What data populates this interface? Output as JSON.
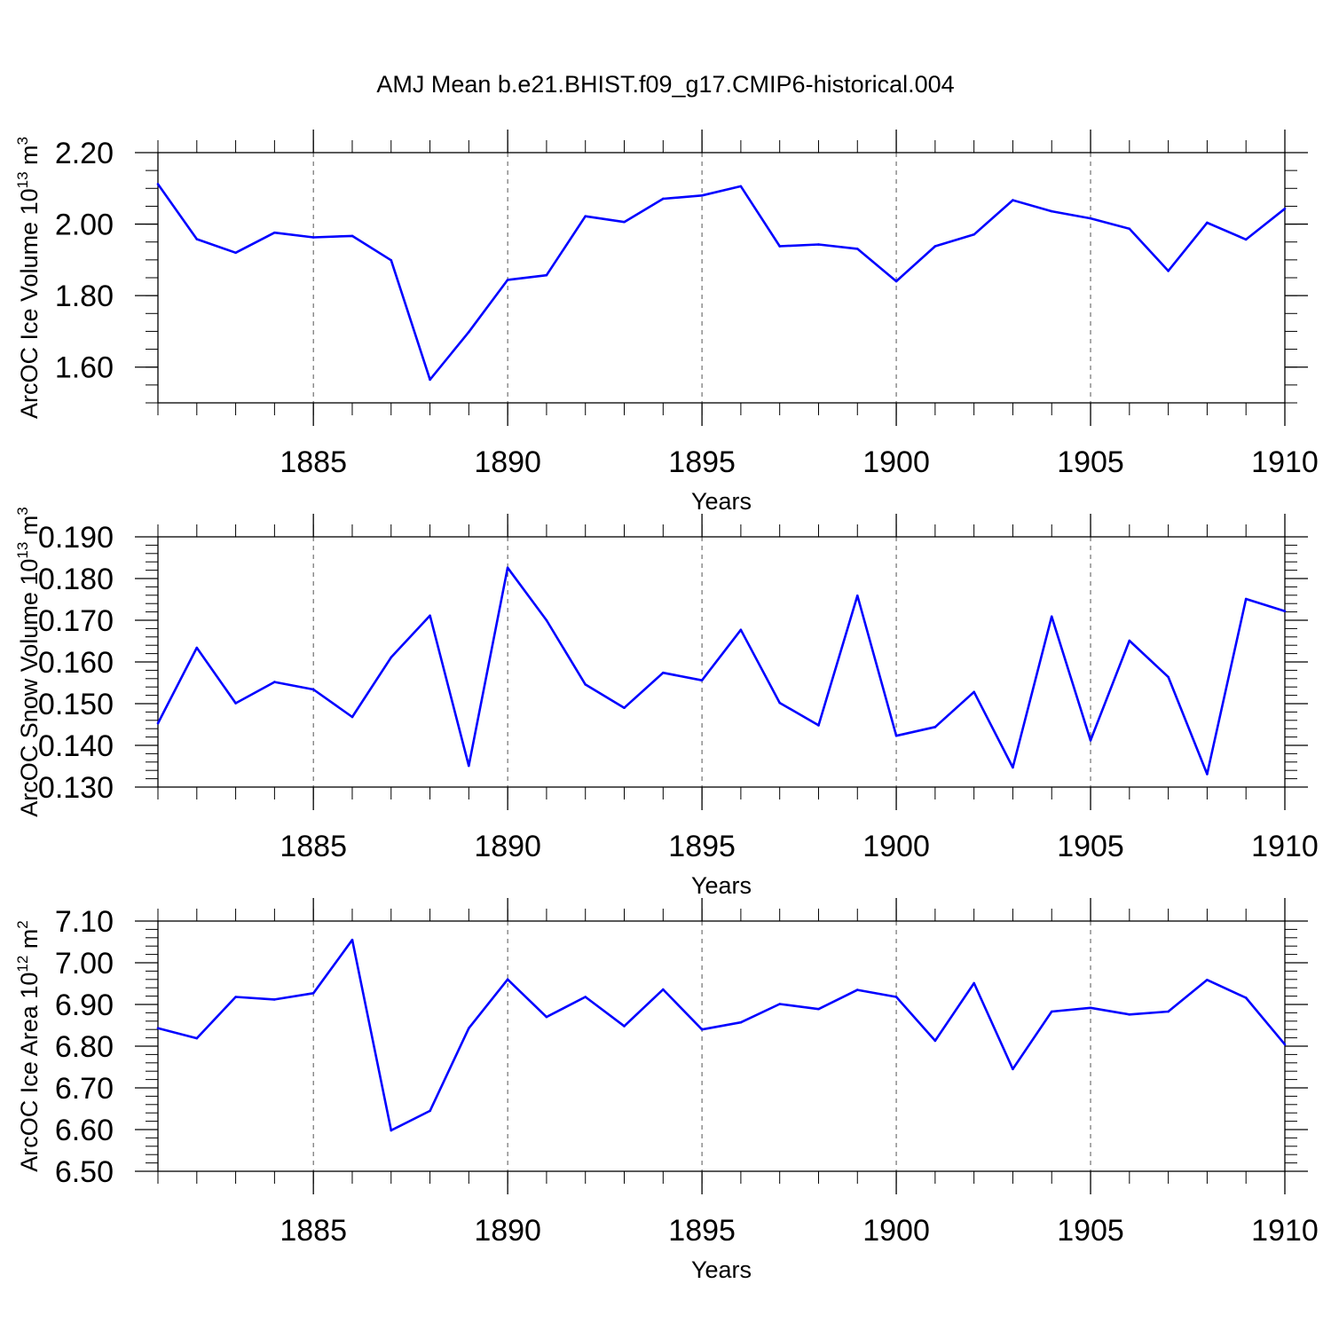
{
  "title": "AMJ Mean b.e21.BHIST.f09_g17.CMIP6-historical.004",
  "line_color": "#0000ff",
  "chart_data": [
    {
      "type": "line",
      "xlabel": "Years",
      "ylabel": {
        "text": "ArcOC Ice Volume 10",
        "exponent": "13",
        "unit": "m",
        "unit_exponent": "3"
      },
      "xlim": [
        1881,
        1910
      ],
      "ylim": [
        1.5,
        2.2
      ],
      "x_ticks": [
        1885,
        1890,
        1895,
        1900,
        1905,
        1910
      ],
      "x_minor_step": 1,
      "y_ticks": [
        1.6,
        1.8,
        2.0,
        2.2
      ],
      "y_tick_labels": [
        "1.60",
        "1.80",
        "2.00",
        "2.20"
      ],
      "y_minor_step": 0.05,
      "grid": "vertical-dashed-at-major-x",
      "x": [
        1881,
        1882,
        1883,
        1884,
        1885,
        1886,
        1887,
        1888,
        1889,
        1890,
        1891,
        1892,
        1893,
        1894,
        1895,
        1896,
        1897,
        1898,
        1899,
        1900,
        1901,
        1902,
        1903,
        1904,
        1905,
        1906,
        1907,
        1908,
        1909,
        1910
      ],
      "values": [
        2.112,
        1.958,
        1.92,
        1.976,
        1.963,
        1.967,
        1.899,
        1.565,
        1.698,
        1.844,
        1.857,
        2.022,
        2.006,
        2.071,
        2.08,
        2.106,
        1.938,
        1.943,
        1.931,
        1.84,
        1.938,
        1.971,
        2.067,
        2.036,
        2.016,
        1.987,
        1.869,
        2.004,
        1.957,
        2.043
      ]
    },
    {
      "type": "line",
      "xlabel": "Years",
      "ylabel": {
        "text": "ArcOC Snow Volume 10",
        "exponent": "13",
        "unit": "m",
        "unit_exponent": "3"
      },
      "xlim": [
        1881,
        1910
      ],
      "ylim": [
        0.13,
        0.19
      ],
      "x_ticks": [
        1885,
        1890,
        1895,
        1900,
        1905,
        1910
      ],
      "x_minor_step": 1,
      "y_ticks": [
        0.13,
        0.14,
        0.15,
        0.16,
        0.17,
        0.18,
        0.19
      ],
      "y_tick_labels": [
        "0.130",
        "0.140",
        "0.150",
        "0.160",
        "0.170",
        "0.180",
        "0.190"
      ],
      "y_minor_step": 0.002,
      "grid": "vertical-dashed-at-major-x",
      "x": [
        1881,
        1882,
        1883,
        1884,
        1885,
        1886,
        1887,
        1888,
        1889,
        1890,
        1891,
        1892,
        1893,
        1894,
        1895,
        1896,
        1897,
        1898,
        1899,
        1900,
        1901,
        1902,
        1903,
        1904,
        1905,
        1906,
        1907,
        1908,
        1909,
        1910
      ],
      "values": [
        0.1453,
        0.1634,
        0.1501,
        0.1552,
        0.1534,
        0.1468,
        0.1611,
        0.1711,
        0.1351,
        0.1826,
        0.17,
        0.1546,
        0.149,
        0.1574,
        0.1556,
        0.1677,
        0.1502,
        0.1448,
        0.1759,
        0.1423,
        0.1444,
        0.1528,
        0.1347,
        0.1709,
        0.1412,
        0.1651,
        0.1564,
        0.1331,
        0.1751,
        0.1722
      ]
    },
    {
      "type": "line",
      "xlabel": "Years",
      "ylabel": {
        "text": "ArcOC Ice Area 10",
        "exponent": "12",
        "unit": "m",
        "unit_exponent": "2"
      },
      "xlim": [
        1881,
        1910
      ],
      "ylim": [
        6.5,
        7.1
      ],
      "x_ticks": [
        1885,
        1890,
        1895,
        1900,
        1905,
        1910
      ],
      "x_minor_step": 1,
      "y_ticks": [
        6.5,
        6.6,
        6.7,
        6.8,
        6.9,
        7.0,
        7.1
      ],
      "y_tick_labels": [
        "6.50",
        "6.60",
        "6.70",
        "6.80",
        "6.90",
        "7.00",
        "7.10"
      ],
      "y_minor_step": 0.02,
      "grid": "vertical-dashed-at-major-x",
      "x": [
        1881,
        1882,
        1883,
        1884,
        1885,
        1886,
        1887,
        1888,
        1889,
        1890,
        1891,
        1892,
        1893,
        1894,
        1895,
        1896,
        1897,
        1898,
        1899,
        1900,
        1901,
        1902,
        1903,
        1904,
        1905,
        1906,
        1907,
        1908,
        1909,
        1910
      ],
      "values": [
        6.843,
        6.819,
        6.918,
        6.912,
        6.927,
        7.055,
        6.598,
        6.645,
        6.843,
        6.96,
        6.87,
        6.918,
        6.848,
        6.936,
        6.84,
        6.857,
        6.901,
        6.889,
        6.935,
        6.918,
        6.813,
        6.951,
        6.745,
        6.883,
        6.892,
        6.876,
        6.883,
        6.959,
        6.916,
        6.804
      ]
    }
  ]
}
